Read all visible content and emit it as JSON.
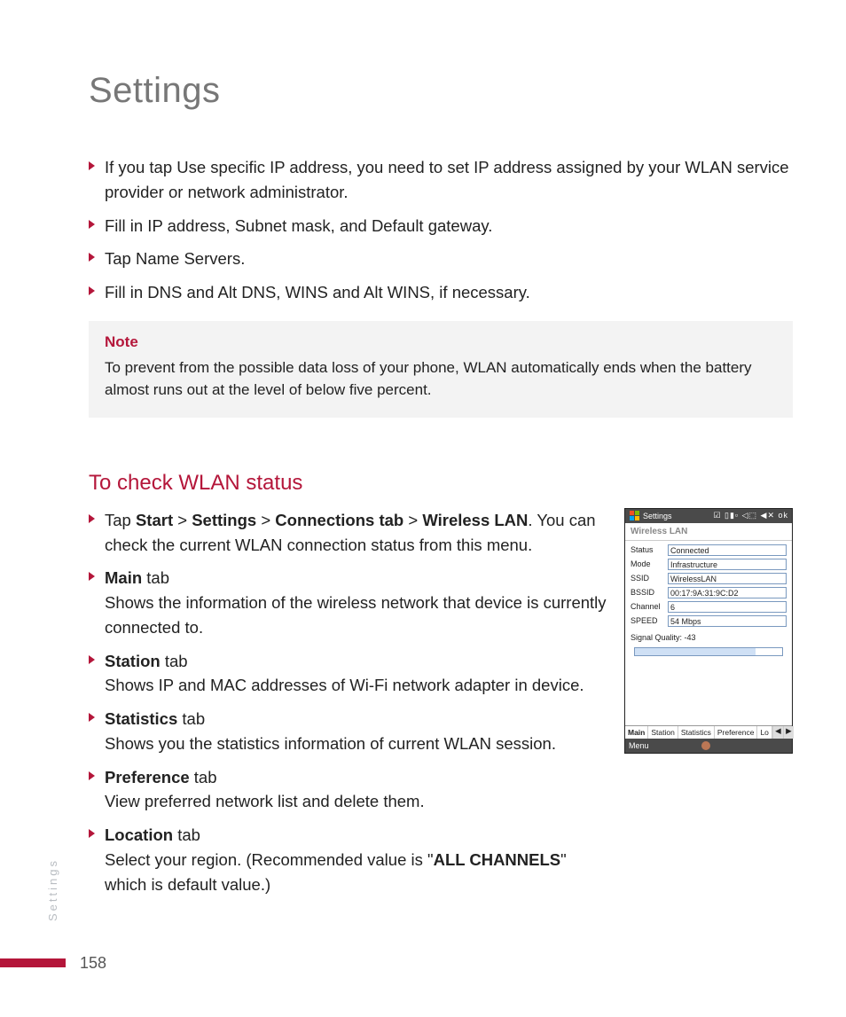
{
  "colors": {
    "accent": "#b4163a",
    "title_gray": "#777777",
    "note_bg": "#f3f3f3",
    "body_text": "#222222",
    "side_label": "#b9bdc2",
    "field_border": "#7a99bf"
  },
  "typography": {
    "page_title_size_pt": 30,
    "body_size_pt": 14,
    "section_title_size_pt": 18,
    "note_title_size_pt": 13
  },
  "page_title": "Settings",
  "top_bullets": [
    "If you tap Use specific IP address, you need to set IP address assigned by your WLAN service provider or network administrator.",
    "Fill in IP address, Subnet mask, and Default gateway.",
    "Tap Name Servers.",
    "Fill in DNS and Alt DNS, WINS and Alt WINS, if necessary."
  ],
  "note": {
    "title": "Note",
    "body": "To prevent from the possible data loss of your phone, WLAN automatically ends when the battery almost runs out at the level of below five percent."
  },
  "section_title": "To check WLAN status",
  "nav_path": {
    "prefix": "Tap ",
    "p1": "Start",
    "sep": " > ",
    "p2": "Settings",
    "p3": "Connections tab",
    "p4": "Wireless LAN",
    "suffix": ". You can check the current WLAN connection status from this menu."
  },
  "tabs": [
    {
      "name": "Main",
      "suffix": " tab",
      "desc": "Shows the information of the wireless network that device is currently connected to."
    },
    {
      "name": "Station",
      "suffix": " tab",
      "desc": "Shows IP and MAC addresses of Wi-Fi network adapter in device."
    },
    {
      "name": "Statistics",
      "suffix": " tab",
      "desc": "Shows you the statistics information of current WLAN session."
    },
    {
      "name": "Preference",
      "suffix": " tab",
      "desc": "View preferred network list and delete them."
    },
    {
      "name": "Location",
      "suffix": " tab",
      "desc_pre": "Select your region. (Recommended value is \"",
      "desc_bold": "ALL CHANNELS",
      "desc_post": "\" which is default value.)"
    }
  ],
  "phone": {
    "topbar_title": "Settings",
    "topbar_tray": "☑ ▯▮▫ ◁⬚ ◀✕  ok",
    "subtitle": "Wireless LAN",
    "fields": [
      {
        "label": "Status",
        "value": "Connected"
      },
      {
        "label": "Mode",
        "value": "Infrastructure"
      },
      {
        "label": "SSID",
        "value": "WirelessLAN"
      },
      {
        "label": "BSSID",
        "value": "00:17:9A:31:9C:D2"
      },
      {
        "label": "Channel",
        "value": "6"
      },
      {
        "label": "SPEED",
        "value": "54 Mbps"
      }
    ],
    "signal_quality": "Signal Quality: -43",
    "signal_percent": 82,
    "tabs": [
      "Main",
      "Station",
      "Statistics",
      "Preference",
      "Lo"
    ],
    "active_tab_index": 0,
    "menu_label": "Menu"
  },
  "side_label": "Settings",
  "page_number": "158"
}
